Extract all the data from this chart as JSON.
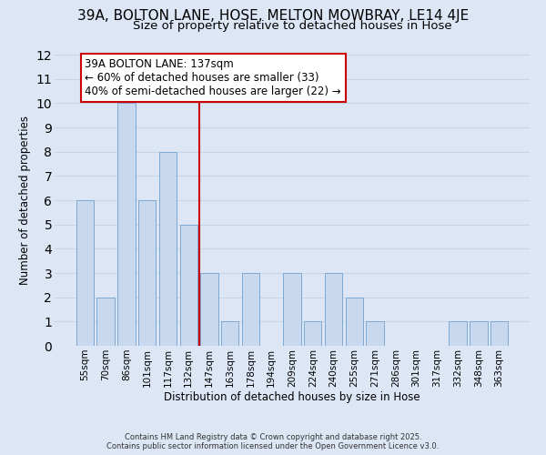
{
  "title": "39A, BOLTON LANE, HOSE, MELTON MOWBRAY, LE14 4JE",
  "subtitle": "Size of property relative to detached houses in Hose",
  "xlabel": "Distribution of detached houses by size in Hose",
  "ylabel": "Number of detached properties",
  "bar_labels": [
    "55sqm",
    "70sqm",
    "86sqm",
    "101sqm",
    "117sqm",
    "132sqm",
    "147sqm",
    "163sqm",
    "178sqm",
    "194sqm",
    "209sqm",
    "224sqm",
    "240sqm",
    "255sqm",
    "271sqm",
    "286sqm",
    "301sqm",
    "317sqm",
    "332sqm",
    "348sqm",
    "363sqm"
  ],
  "bar_values": [
    6,
    2,
    10,
    6,
    8,
    5,
    3,
    1,
    3,
    0,
    3,
    1,
    3,
    2,
    1,
    0,
    0,
    0,
    1,
    1,
    1
  ],
  "bar_color": "#c8d8ee",
  "bar_edge_color": "#7da8d0",
  "vline_x": 5.5,
  "vline_color": "#cc0000",
  "annotation_text": "39A BOLTON LANE: 137sqm\n← 60% of detached houses are smaller (33)\n40% of semi-detached houses are larger (22) →",
  "annotation_box_color": "white",
  "annotation_box_edge": "#cc0000",
  "ylim": [
    0,
    12
  ],
  "yticks": [
    0,
    1,
    2,
    3,
    4,
    5,
    6,
    7,
    8,
    9,
    10,
    11,
    12
  ],
  "grid_color": "#c8d4e8",
  "background_color": "#dce6f5",
  "footer_text": "Contains HM Land Registry data © Crown copyright and database right 2025.\nContains public sector information licensed under the Open Government Licence v3.0.",
  "title_fontsize": 11,
  "subtitle_fontsize": 9.5,
  "label_fontsize": 8.5,
  "tick_fontsize": 7.5,
  "annotation_fontsize": 8.5,
  "footer_fontsize": 6.0
}
